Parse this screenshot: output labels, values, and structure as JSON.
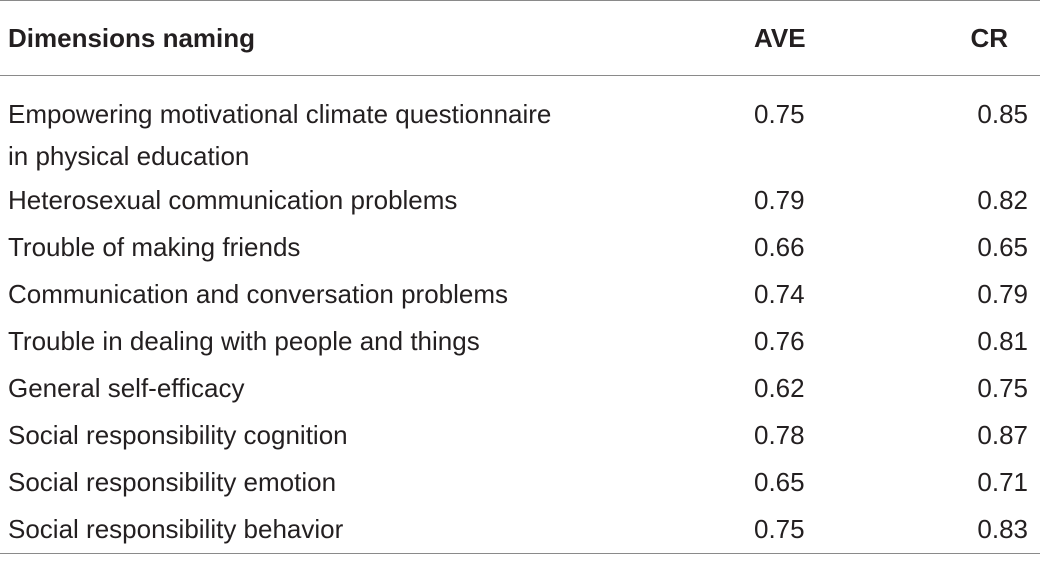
{
  "table": {
    "headers": {
      "name": "Dimensions naming",
      "ave": "AVE",
      "cr": "CR"
    },
    "rows": [
      {
        "name_line1": "Empowering motivational climate questionnaire",
        "name_line2": "in physical education",
        "ave": "0.75",
        "cr": "0.85"
      },
      {
        "name": "Heterosexual communication problems",
        "ave": "0.79",
        "cr": "0.82"
      },
      {
        "name": "Trouble of making friends",
        "ave": "0.66",
        "cr": "0.65"
      },
      {
        "name": "Communication and conversation problems",
        "ave": "0.74",
        "cr": "0.79"
      },
      {
        "name": "Trouble in dealing with people and things",
        "ave": "0.76",
        "cr": "0.81"
      },
      {
        "name": "General self-efficacy",
        "ave": "0.62",
        "cr": "0.75"
      },
      {
        "name": "Social responsibility cognition",
        "ave": "0.78",
        "cr": "0.87"
      },
      {
        "name": "Social responsibility emotion",
        "ave": "0.65",
        "cr": "0.71"
      },
      {
        "name": "Social responsibility behavior",
        "ave": "0.75",
        "cr": "0.83"
      }
    ]
  }
}
